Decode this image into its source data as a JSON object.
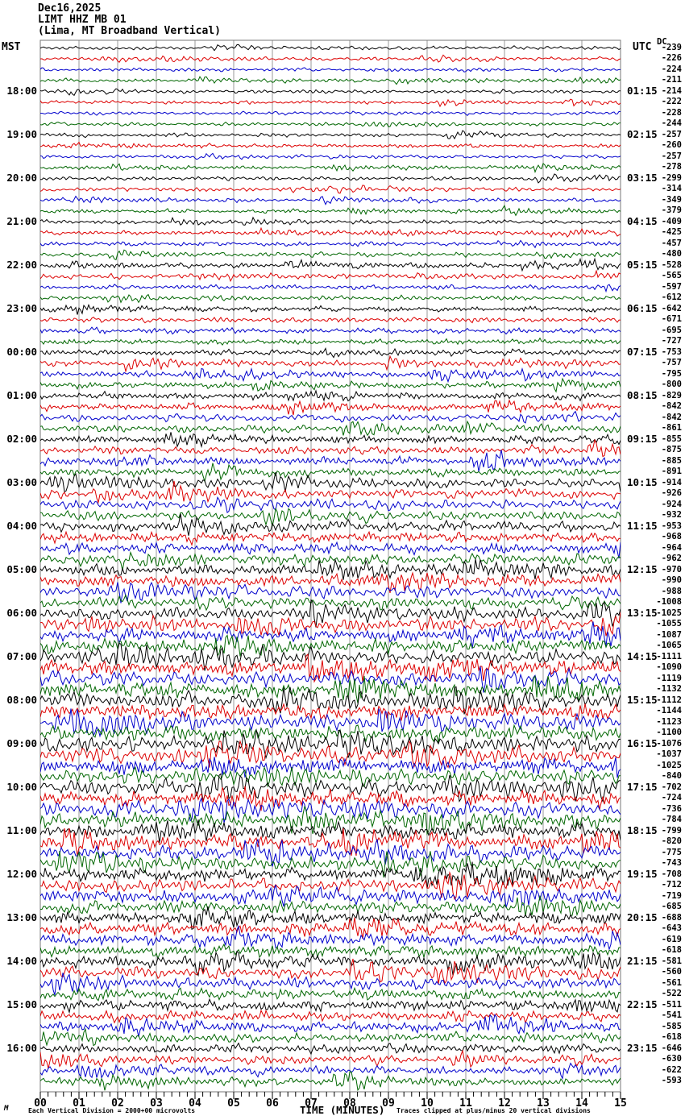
{
  "header": {
    "date": "Dec16,2025",
    "station": "LIMT HHZ MB 01",
    "location": "(Lima, MT Broadband Vertical)"
  },
  "axis": {
    "left_tz": "MST",
    "right_tz": "UTC",
    "dc_header": "DC",
    "x_title": "TIME (MINUTES)",
    "x_ticks": [
      "00",
      "01",
      "02",
      "03",
      "04",
      "05",
      "06",
      "07",
      "08",
      "09",
      "10",
      "11",
      "12",
      "13",
      "14",
      "15"
    ]
  },
  "footer": {
    "scale_note": "Each Vertical Division = 2000+00 microvolts",
    "clip_note": "Traces clipped at plus/minus 20 vertical divisions",
    "watermark": "M"
  },
  "chart_data": {
    "type": "line",
    "description": "24-hour helicorder seismogram, 96 trace rows of 15 minutes each; left labels = row start time (MST), right labels = row end time (UTC); DC column = per-trace DC offset in microvolts",
    "x_range_minutes": [
      0,
      15
    ],
    "minutes_per_row": 15,
    "grid": true,
    "colors": {
      "black": "#000000",
      "red": "#dd0000",
      "blue": "#0000cc",
      "green": "#006600",
      "grid": "#999999",
      "border": "#777777"
    },
    "trace_color_cycle": [
      "black",
      "red",
      "blue",
      "green"
    ],
    "rows": [
      {
        "dc": -239,
        "color": "black",
        "mst": "",
        "utc": "",
        "amp": 2.2
      },
      {
        "dc": -226,
        "color": "red",
        "mst": "",
        "utc": "",
        "amp": 2.2
      },
      {
        "dc": -224,
        "color": "blue",
        "mst": "",
        "utc": "",
        "amp": 2.2
      },
      {
        "dc": -211,
        "color": "green",
        "mst": "",
        "utc": "",
        "amp": 2.2
      },
      {
        "dc": -214,
        "color": "black",
        "mst": "18:00",
        "utc": "01:15",
        "amp": 2.2
      },
      {
        "dc": -222,
        "color": "red",
        "mst": "",
        "utc": "",
        "amp": 2.2
      },
      {
        "dc": -228,
        "color": "blue",
        "mst": "",
        "utc": "",
        "amp": 2.2
      },
      {
        "dc": -244,
        "color": "green",
        "mst": "",
        "utc": "",
        "amp": 2.2
      },
      {
        "dc": -257,
        "color": "black",
        "mst": "19:00",
        "utc": "02:15",
        "amp": 2.3
      },
      {
        "dc": -260,
        "color": "red",
        "mst": "",
        "utc": "",
        "amp": 2.3
      },
      {
        "dc": -257,
        "color": "blue",
        "mst": "",
        "utc": "",
        "amp": 2.3
      },
      {
        "dc": -278,
        "color": "green",
        "mst": "",
        "utc": "",
        "amp": 2.3
      },
      {
        "dc": -299,
        "color": "black",
        "mst": "20:00",
        "utc": "03:15",
        "amp": 2.4
      },
      {
        "dc": -314,
        "color": "red",
        "mst": "",
        "utc": "",
        "amp": 2.4
      },
      {
        "dc": -349,
        "color": "blue",
        "mst": "",
        "utc": "",
        "amp": 2.4
      },
      {
        "dc": -379,
        "color": "green",
        "mst": "",
        "utc": "",
        "amp": 2.4
      },
      {
        "dc": -409,
        "color": "black",
        "mst": "21:00",
        "utc": "04:15",
        "amp": 2.6
      },
      {
        "dc": -425,
        "color": "red",
        "mst": "",
        "utc": "",
        "amp": 2.6
      },
      {
        "dc": -457,
        "color": "blue",
        "mst": "",
        "utc": "",
        "amp": 2.6
      },
      {
        "dc": -480,
        "color": "green",
        "mst": "",
        "utc": "",
        "amp": 2.6
      },
      {
        "dc": -528,
        "color": "black",
        "mst": "22:00",
        "utc": "05:15",
        "amp": 2.9
      },
      {
        "dc": -565,
        "color": "red",
        "mst": "",
        "utc": "",
        "amp": 2.9
      },
      {
        "dc": -597,
        "color": "blue",
        "mst": "",
        "utc": "",
        "amp": 2.9
      },
      {
        "dc": -612,
        "color": "green",
        "mst": "",
        "utc": "",
        "amp": 3.0
      },
      {
        "dc": -642,
        "color": "black",
        "mst": "23:00",
        "utc": "06:15",
        "amp": 3.2
      },
      {
        "dc": -671,
        "color": "red",
        "mst": "",
        "utc": "",
        "amp": 3.2
      },
      {
        "dc": -695,
        "color": "blue",
        "mst": "",
        "utc": "",
        "amp": 3.3
      },
      {
        "dc": -727,
        "color": "green",
        "mst": "",
        "utc": "",
        "amp": 3.4
      },
      {
        "dc": -753,
        "color": "black",
        "mst": "00:00",
        "utc": "07:15",
        "amp": 3.6
      },
      {
        "dc": -757,
        "color": "red",
        "mst": "",
        "utc": "",
        "amp": 3.6
      },
      {
        "dc": -795,
        "color": "blue",
        "mst": "",
        "utc": "",
        "amp": 3.7
      },
      {
        "dc": -800,
        "color": "green",
        "mst": "",
        "utc": "",
        "amp": 3.8
      },
      {
        "dc": -829,
        "color": "black",
        "mst": "01:00",
        "utc": "08:15",
        "amp": 4.2
      },
      {
        "dc": -842,
        "color": "red",
        "mst": "",
        "utc": "",
        "amp": 4.3
      },
      {
        "dc": -842,
        "color": "blue",
        "mst": "",
        "utc": "",
        "amp": 4.4
      },
      {
        "dc": -861,
        "color": "green",
        "mst": "",
        "utc": "",
        "amp": 4.5
      },
      {
        "dc": -855,
        "color": "black",
        "mst": "02:00",
        "utc": "09:15",
        "amp": 4.7
      },
      {
        "dc": -875,
        "color": "red",
        "mst": "",
        "utc": "",
        "amp": 4.8
      },
      {
        "dc": -885,
        "color": "blue",
        "mst": "",
        "utc": "",
        "amp": 4.9
      },
      {
        "dc": -891,
        "color": "green",
        "mst": "",
        "utc": "",
        "amp": 5.0
      },
      {
        "dc": -914,
        "color": "black",
        "mst": "03:00",
        "utc": "10:15",
        "amp": 5.4
      },
      {
        "dc": -926,
        "color": "red",
        "mst": "",
        "utc": "",
        "amp": 5.5
      },
      {
        "dc": -924,
        "color": "blue",
        "mst": "",
        "utc": "",
        "amp": 5.6
      },
      {
        "dc": -932,
        "color": "green",
        "mst": "",
        "utc": "",
        "amp": 5.8
      },
      {
        "dc": -953,
        "color": "black",
        "mst": "04:00",
        "utc": "11:15",
        "amp": 6.2
      },
      {
        "dc": -968,
        "color": "red",
        "mst": "",
        "utc": "",
        "amp": 6.3
      },
      {
        "dc": -964,
        "color": "blue",
        "mst": "",
        "utc": "",
        "amp": 6.4
      },
      {
        "dc": -962,
        "color": "green",
        "mst": "",
        "utc": "",
        "amp": 6.6
      },
      {
        "dc": -970,
        "color": "black",
        "mst": "05:00",
        "utc": "12:15",
        "amp": 6.9
      },
      {
        "dc": -990,
        "color": "red",
        "mst": "",
        "utc": "",
        "amp": 7.0
      },
      {
        "dc": -988,
        "color": "blue",
        "mst": "",
        "utc": "",
        "amp": 7.1
      },
      {
        "dc": -1008,
        "color": "green",
        "mst": "",
        "utc": "",
        "amp": 7.3
      },
      {
        "dc": -1025,
        "color": "black",
        "mst": "06:00",
        "utc": "13:15",
        "amp": 7.7
      },
      {
        "dc": -1055,
        "color": "red",
        "mst": "",
        "utc": "",
        "amp": 7.8
      },
      {
        "dc": -1087,
        "color": "blue",
        "mst": "",
        "utc": "",
        "amp": 8.0
      },
      {
        "dc": -1065,
        "color": "green",
        "mst": "",
        "utc": "",
        "amp": 8.2
      },
      {
        "dc": -1111,
        "color": "black",
        "mst": "07:00",
        "utc": "14:15",
        "amp": 8.6
      },
      {
        "dc": -1090,
        "color": "red",
        "mst": "",
        "utc": "",
        "amp": 8.8
      },
      {
        "dc": -1119,
        "color": "blue",
        "mst": "",
        "utc": "",
        "amp": 9.0
      },
      {
        "dc": -1132,
        "color": "green",
        "mst": "",
        "utc": "",
        "amp": 9.1
      },
      {
        "dc": -1112,
        "color": "black",
        "mst": "08:00",
        "utc": "15:15",
        "amp": 9.2
      },
      {
        "dc": -1144,
        "color": "red",
        "mst": "",
        "utc": "",
        "amp": 9.3
      },
      {
        "dc": -1123,
        "color": "blue",
        "mst": "",
        "utc": "",
        "amp": 9.4
      },
      {
        "dc": -1100,
        "color": "green",
        "mst": "",
        "utc": "",
        "amp": 9.5
      },
      {
        "dc": -1076,
        "color": "black",
        "mst": "09:00",
        "utc": "16:15",
        "amp": 9.6
      },
      {
        "dc": -1037,
        "color": "red",
        "mst": "",
        "utc": "",
        "amp": 9.6
      },
      {
        "dc": -1025,
        "color": "blue",
        "mst": "",
        "utc": "",
        "amp": 9.4
      },
      {
        "dc": -840,
        "color": "green",
        "mst": "",
        "utc": "",
        "amp": 9.3
      },
      {
        "dc": -702,
        "color": "black",
        "mst": "10:00",
        "utc": "17:15",
        "amp": 9.2
      },
      {
        "dc": -724,
        "color": "red",
        "mst": "",
        "utc": "",
        "amp": 9.0
      },
      {
        "dc": -736,
        "color": "blue",
        "mst": "",
        "utc": "",
        "amp": 8.9
      },
      {
        "dc": -784,
        "color": "green",
        "mst": "",
        "utc": "",
        "amp": 8.8
      },
      {
        "dc": -799,
        "color": "black",
        "mst": "11:00",
        "utc": "18:15",
        "amp": 8.7
      },
      {
        "dc": -820,
        "color": "red",
        "mst": "",
        "utc": "",
        "amp": 8.6
      },
      {
        "dc": -775,
        "color": "blue",
        "mst": "",
        "utc": "",
        "amp": 8.4
      },
      {
        "dc": -743,
        "color": "green",
        "mst": "",
        "utc": "",
        "amp": 8.3
      },
      {
        "dc": -708,
        "color": "black",
        "mst": "12:00",
        "utc": "19:15",
        "amp": 8.1
      },
      {
        "dc": -712,
        "color": "red",
        "mst": "",
        "utc": "",
        "amp": 8.0
      },
      {
        "dc": -719,
        "color": "blue",
        "mst": "",
        "utc": "",
        "amp": 7.9
      },
      {
        "dc": -685,
        "color": "green",
        "mst": "",
        "utc": "",
        "amp": 7.7
      },
      {
        "dc": -688,
        "color": "black",
        "mst": "13:00",
        "utc": "20:15",
        "amp": 7.5
      },
      {
        "dc": -643,
        "color": "red",
        "mst": "",
        "utc": "",
        "amp": 7.4
      },
      {
        "dc": -619,
        "color": "blue",
        "mst": "",
        "utc": "",
        "amp": 7.3
      },
      {
        "dc": -618,
        "color": "green",
        "mst": "",
        "utc": "",
        "amp": 7.2
      },
      {
        "dc": -581,
        "color": "black",
        "mst": "14:00",
        "utc": "21:15",
        "amp": 7.0
      },
      {
        "dc": -560,
        "color": "red",
        "mst": "",
        "utc": "",
        "amp": 6.9
      },
      {
        "dc": -561,
        "color": "blue",
        "mst": "",
        "utc": "",
        "amp": 6.8
      },
      {
        "dc": -522,
        "color": "green",
        "mst": "",
        "utc": "",
        "amp": 6.6
      },
      {
        "dc": -511,
        "color": "black",
        "mst": "15:00",
        "utc": "22:15",
        "amp": 6.4
      },
      {
        "dc": -541,
        "color": "red",
        "mst": "",
        "utc": "",
        "amp": 6.3
      },
      {
        "dc": -585,
        "color": "blue",
        "mst": "",
        "utc": "",
        "amp": 6.1
      },
      {
        "dc": -618,
        "color": "green",
        "mst": "",
        "utc": "",
        "amp": 5.9
      },
      {
        "dc": -646,
        "color": "black",
        "mst": "16:00",
        "utc": "23:15",
        "amp": 5.6
      },
      {
        "dc": -630,
        "color": "red",
        "mst": "",
        "utc": "",
        "amp": 5.4
      },
      {
        "dc": -622,
        "color": "blue",
        "mst": "",
        "utc": "",
        "amp": 5.2
      },
      {
        "dc": -593,
        "color": "green",
        "mst": "",
        "utc": "",
        "amp": 5.0
      }
    ]
  }
}
